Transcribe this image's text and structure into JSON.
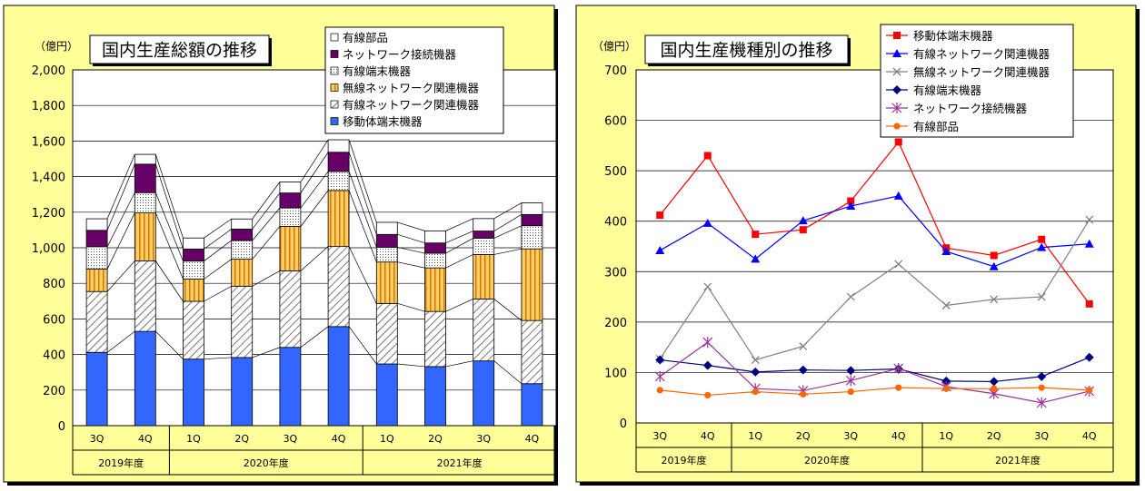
{
  "colors": {
    "panel_bg": "#ffff99",
    "plot_bg": "#ffffff",
    "grid": "#000000",
    "mobile": "#3366ff",
    "wired_net": "#ffffff",
    "wireless_net": "#ffcc66",
    "wired_terminal": "#ffffff",
    "net_connect": "#660066",
    "wired_parts": "#ffffff",
    "line_mobile": "#ff0000",
    "line_wired_net": "#0000ff",
    "line_wireless_net": "#808080",
    "line_wired_terminal": "#000080",
    "line_net_connect": "#993399",
    "line_wired_parts": "#ff6600"
  },
  "chart_data": [
    {
      "type": "bar",
      "stacked": true,
      "title": "国内生産総額の推移",
      "unit_label": "（億円）",
      "categories": [
        "3Q",
        "4Q",
        "1Q",
        "2Q",
        "3Q",
        "4Q",
        "1Q",
        "2Q",
        "3Q",
        "4Q"
      ],
      "year_groups": [
        {
          "label": "2019年度",
          "count": 2
        },
        {
          "label": "2020年度",
          "count": 4
        },
        {
          "label": "2021年度",
          "count": 4
        }
      ],
      "ylim": [
        0,
        2000
      ],
      "yticks": [
        "0",
        "200",
        "400",
        "600",
        "800",
        "1,000",
        "1,200",
        "1,400",
        "1,600",
        "1,800",
        "2,000"
      ],
      "legend_position": "top-right",
      "series": [
        {
          "name": "移動体端末機器",
          "values": [
            412,
            530,
            374,
            383,
            440,
            557,
            347,
            332,
            364,
            236
          ]
        },
        {
          "name": "有線ネットワーク関連機器",
          "values": [
            342,
            396,
            325,
            401,
            430,
            450,
            340,
            310,
            348,
            355
          ]
        },
        {
          "name": "無線ネットワーク関連機器",
          "values": [
            127,
            270,
            125,
            152,
            250,
            315,
            233,
            245,
            250,
            403
          ]
        },
        {
          "name": "有線端末機器",
          "values": [
            125,
            114,
            101,
            105,
            104,
            107,
            83,
            82,
            92,
            130
          ]
        },
        {
          "name": "ネットワーク接続機器",
          "values": [
            92,
            160,
            68,
            64,
            84,
            108,
            72,
            58,
            40,
            63
          ]
        },
        {
          "name": "有線部品",
          "values": [
            65,
            55,
            62,
            57,
            62,
            70,
            68,
            68,
            70,
            65
          ]
        }
      ]
    },
    {
      "type": "line",
      "title": "国内生産機種別の推移",
      "unit_label": "（億円）",
      "categories": [
        "3Q",
        "4Q",
        "1Q",
        "2Q",
        "3Q",
        "4Q",
        "1Q",
        "2Q",
        "3Q",
        "4Q"
      ],
      "year_groups": [
        {
          "label": "2019年度",
          "count": 2
        },
        {
          "label": "2020年度",
          "count": 4
        },
        {
          "label": "2021年度",
          "count": 4
        }
      ],
      "ylim": [
        0,
        700
      ],
      "yticks": [
        "0",
        "100",
        "200",
        "300",
        "400",
        "500",
        "600",
        "700"
      ],
      "legend_position": "top-right",
      "series": [
        {
          "name": "移動体端末機器",
          "marker": "square",
          "values": [
            412,
            530,
            374,
            383,
            440,
            557,
            347,
            332,
            364,
            236
          ]
        },
        {
          "name": "有線ネットワーク関連機器",
          "marker": "triangle",
          "values": [
            342,
            396,
            325,
            401,
            430,
            450,
            340,
            310,
            348,
            355
          ]
        },
        {
          "name": "無線ネットワーク関連機器",
          "marker": "x",
          "values": [
            127,
            270,
            125,
            152,
            250,
            315,
            233,
            245,
            250,
            403
          ]
        },
        {
          "name": "有線端末機器",
          "marker": "diamond",
          "values": [
            125,
            114,
            101,
            105,
            104,
            107,
            83,
            82,
            92,
            130
          ]
        },
        {
          "name": "ネットワーク接続機器",
          "marker": "asterisk",
          "values": [
            92,
            160,
            68,
            64,
            84,
            108,
            72,
            58,
            40,
            63
          ]
        },
        {
          "name": "有線部品",
          "marker": "circle",
          "values": [
            65,
            55,
            62,
            57,
            62,
            70,
            68,
            68,
            70,
            65
          ]
        }
      ]
    }
  ]
}
